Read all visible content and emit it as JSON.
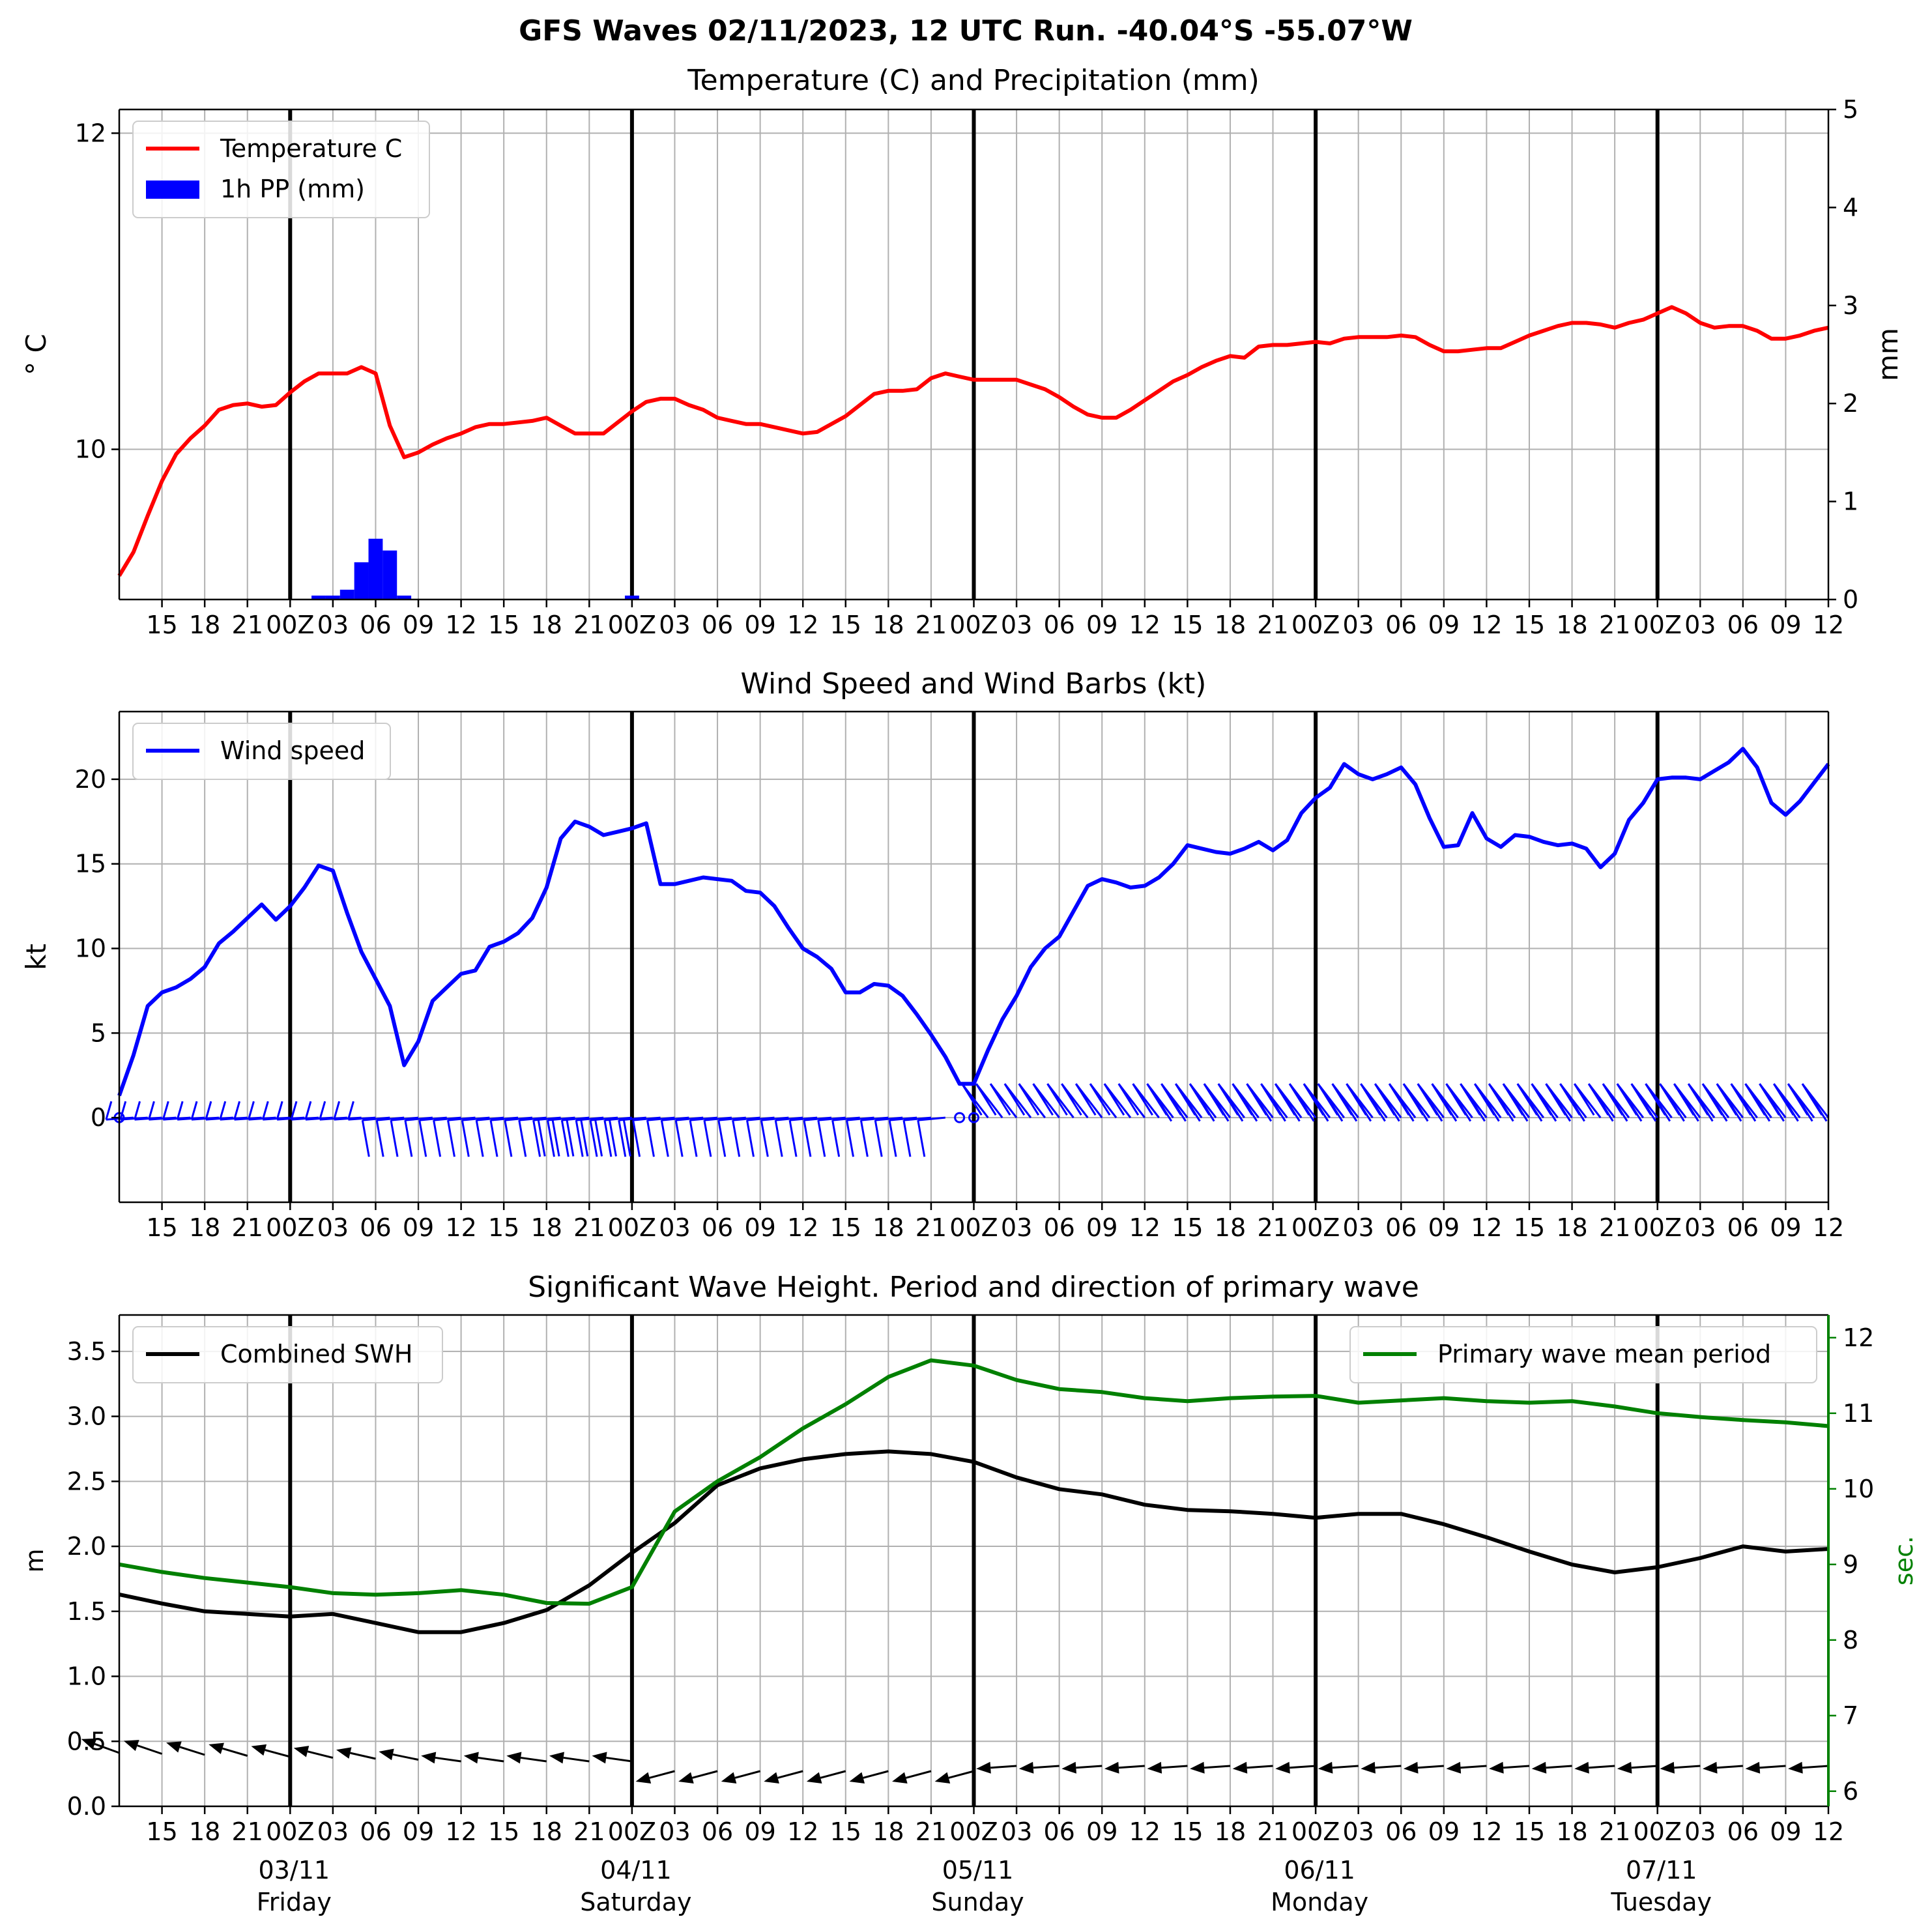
{
  "page_title": "GFS Waves 02/11/2023, 12 UTC Run. -40.04°S -55.07°W",
  "colors": {
    "temperature": "#ff0000",
    "precipitation": "#0000ff",
    "wind": "#0000ff",
    "swh": "#000000",
    "period": "#008000",
    "grid": "#b0b0b0"
  },
  "time_axis": {
    "hours_from": 12,
    "hours_to": 132,
    "hour_tick_labels": [
      "15",
      "18",
      "21",
      "00Z",
      "03",
      "06",
      "09",
      "12",
      "15",
      "18",
      "21",
      "00Z",
      "03",
      "06",
      "09",
      "12",
      "15",
      "18",
      "21",
      "00Z",
      "03",
      "06",
      "09",
      "12",
      "15",
      "18",
      "21",
      "00Z",
      "03",
      "06",
      "09",
      "12",
      "15",
      "18",
      "21",
      "00Z",
      "03",
      "06",
      "09",
      "12"
    ],
    "day_labels": [
      {
        "date": "03/11",
        "weekday": "Friday"
      },
      {
        "date": "04/11",
        "weekday": "Saturday"
      },
      {
        "date": "05/11",
        "weekday": "Sunday"
      },
      {
        "date": "06/11",
        "weekday": "Monday"
      },
      {
        "date": "07/11",
        "weekday": "Tuesday"
      }
    ]
  },
  "chart_data": [
    {
      "type": "line",
      "title": "Temperature (C) and Precipitation (mm)",
      "ylabel": "$^\\circ$C",
      "ylabel_right": "mm",
      "ylim": [
        9.05,
        12.15
      ],
      "yticks": [
        "10",
        "12"
      ],
      "ylim_right": [
        0,
        5
      ],
      "yticks_right": [
        "0",
        "1",
        "2",
        "3",
        "4",
        "5"
      ],
      "grid": true,
      "legend": "top-left",
      "series": [
        {
          "name": "Temperature C",
          "x": [
            12,
            13,
            14,
            15,
            16,
            17,
            18,
            19,
            20,
            21,
            22,
            23,
            24,
            25,
            26,
            27,
            28,
            29,
            30,
            31,
            32,
            33,
            34,
            35,
            36,
            37,
            38,
            39,
            40,
            41,
            42,
            43,
            44,
            45,
            46,
            47,
            48,
            49,
            50,
            51,
            52,
            53,
            54,
            55,
            56,
            57,
            58,
            59,
            60,
            61,
            62,
            63,
            64,
            65,
            66,
            67,
            68,
            69,
            70,
            71,
            72,
            73,
            74,
            75,
            76,
            77,
            78,
            79,
            80,
            81,
            82,
            83,
            84,
            85,
            86,
            87,
            88,
            89,
            90,
            91,
            92,
            93,
            94,
            95,
            96,
            97,
            98,
            99,
            100,
            101,
            102,
            103,
            104,
            105,
            106,
            107,
            108,
            109,
            110,
            111,
            112,
            113,
            114,
            115,
            116,
            117,
            118,
            119,
            120,
            121,
            122,
            123,
            124,
            125,
            126,
            127,
            128,
            129,
            130,
            131,
            132
          ],
          "values": [
            9.2,
            9.35,
            9.58,
            9.8,
            9.97,
            10.07,
            10.15,
            10.25,
            10.28,
            10.29,
            10.27,
            10.28,
            10.36,
            10.43,
            10.48,
            10.48,
            10.48,
            10.52,
            10.48,
            10.15,
            9.95,
            9.98,
            10.03,
            10.07,
            10.1,
            10.14,
            10.16,
            10.16,
            10.17,
            10.18,
            10.2,
            10.15,
            10.1,
            10.1,
            10.1,
            10.17,
            10.24,
            10.3,
            10.32,
            10.32,
            10.28,
            10.25,
            10.2,
            10.18,
            10.16,
            10.16,
            10.14,
            10.12,
            10.1,
            10.11,
            10.16,
            10.21,
            10.28,
            10.35,
            10.37,
            10.37,
            10.38,
            10.45,
            10.48,
            10.46,
            10.44,
            10.44,
            10.44,
            10.44,
            10.41,
            10.38,
            10.33,
            10.27,
            10.22,
            10.2,
            10.2,
            10.25,
            10.31,
            10.37,
            10.43,
            10.47,
            10.52,
            10.56,
            10.59,
            10.58,
            10.65,
            10.66,
            10.66,
            10.67,
            10.68,
            10.67,
            10.7,
            10.71,
            10.71,
            10.71,
            10.72,
            10.71,
            10.66,
            10.62,
            10.62,
            10.63,
            10.64,
            10.64,
            10.68,
            10.72,
            10.75,
            10.78,
            10.8,
            10.8,
            10.79,
            10.77,
            10.8,
            10.82,
            10.86,
            10.9,
            10.86,
            10.8,
            10.77,
            10.78,
            10.78,
            10.75,
            10.7,
            10.7,
            10.72,
            10.75,
            10.77
          ]
        },
        {
          "name": "1h PP (mm)",
          "axis": "right",
          "x": [
            26,
            27,
            28,
            29,
            30,
            31,
            32,
            48
          ],
          "values": [
            0.04,
            0.04,
            0.1,
            0.38,
            0.62,
            0.5,
            0.04,
            0.04
          ]
        }
      ]
    },
    {
      "type": "line",
      "title": "Wind Speed and Wind Barbs (kt)",
      "ylabel": "kt",
      "ylim": [
        -5,
        24
      ],
      "yticks": [
        "0",
        "5",
        "10",
        "15",
        "20"
      ],
      "grid": true,
      "legend": "top-left",
      "series": [
        {
          "name": "Wind speed",
          "x": [
            12,
            13,
            14,
            15,
            16,
            17,
            18,
            19,
            20,
            21,
            22,
            23,
            24,
            25,
            26,
            27,
            28,
            29,
            30,
            31,
            32,
            33,
            34,
            35,
            36,
            37,
            38,
            39,
            40,
            41,
            42,
            43,
            44,
            45,
            46,
            47,
            48,
            49,
            50,
            51,
            52,
            53,
            54,
            55,
            56,
            57,
            58,
            59,
            60,
            61,
            62,
            63,
            64,
            65,
            66,
            67,
            68,
            69,
            70,
            71,
            72,
            73,
            74,
            75,
            76,
            77,
            78,
            79,
            80,
            81,
            82,
            83,
            84,
            85,
            86,
            87,
            88,
            89,
            90,
            91,
            92,
            93,
            94,
            95,
            96,
            97,
            98,
            99,
            100,
            101,
            102,
            103,
            104,
            105,
            106,
            107,
            108,
            109,
            110,
            111,
            112,
            113,
            114,
            115,
            116,
            117,
            118,
            119,
            120,
            121,
            122,
            123,
            124,
            125,
            126,
            127,
            128,
            129,
            130,
            131,
            132
          ],
          "values": [
            1.3,
            3.7,
            6.6,
            7.4,
            7.7,
            8.2,
            8.9,
            10.3,
            11,
            11.8,
            12.6,
            11.7,
            12.5,
            13.6,
            14.9,
            14.6,
            12.1,
            9.8,
            8.2,
            6.6,
            3.1,
            4.5,
            6.9,
            7.7,
            8.5,
            8.7,
            10.1,
            10.4,
            10.9,
            11.8,
            13.6,
            16.5,
            17.5,
            17.2,
            16.7,
            16.9,
            17.1,
            17.4,
            13.8,
            13.8,
            14,
            14.2,
            14.1,
            14,
            13.4,
            13.3,
            12.5,
            11.2,
            10,
            9.5,
            8.8,
            7.4,
            7.4,
            7.9,
            7.8,
            7.2,
            6.1,
            4.9,
            3.6,
            2,
            2,
            4,
            5.8,
            7.2,
            8.9,
            10,
            10.7,
            12.2,
            13.7,
            14.1,
            13.9,
            13.6,
            13.7,
            14.2,
            15,
            16.1,
            15.9,
            15.7,
            15.6,
            15.9,
            16.3,
            15.8,
            16.4,
            18,
            18.9,
            19.5,
            20.9,
            20.3,
            20,
            20.3,
            20.7,
            19.7,
            17.7,
            16,
            16.1,
            18,
            16.5,
            16,
            16.7,
            16.6,
            16.3,
            16.1,
            16.2,
            15.9,
            14.8,
            15.6,
            17.6,
            18.6,
            20,
            20.1,
            20.1,
            20,
            20.5,
            21,
            21.8,
            20.7,
            18.6,
            17.9,
            18.7,
            19.8,
            20.9
          ]
        }
      ],
      "wind_barbs": {
        "count": 121,
        "note": "wind barbs along zero line"
      }
    },
    {
      "type": "line",
      "title": "Significant Wave Height. Period and direction of primary wave",
      "ylabel": "m",
      "ylabel_right": "sec.",
      "ylim": [
        0,
        3.78
      ],
      "yticks": [
        "0.0",
        "0.5",
        "1.0",
        "1.5",
        "2.0",
        "2.5",
        "3.0",
        "3.5"
      ],
      "ylim_right": [
        5.8,
        12.3
      ],
      "yticks_right": [
        "6",
        "7",
        "8",
        "9",
        "10",
        "11",
        "12"
      ],
      "grid": true,
      "series": [
        {
          "name": "Combined SWH",
          "legend": "top-left",
          "x": [
            12,
            15,
            18,
            21,
            24,
            27,
            30,
            33,
            36,
            39,
            42,
            45,
            48,
            51,
            54,
            57,
            60,
            63,
            66,
            69,
            72,
            75,
            78,
            81,
            84,
            87,
            90,
            93,
            96,
            99,
            102,
            105,
            108,
            111,
            114,
            117,
            120,
            123,
            126,
            129,
            132
          ],
          "values": [
            1.63,
            1.56,
            1.5,
            1.48,
            1.46,
            1.48,
            1.41,
            1.34,
            1.34,
            1.41,
            1.51,
            1.7,
            1.95,
            2.18,
            2.47,
            2.6,
            2.67,
            2.71,
            2.73,
            2.71,
            2.65,
            2.53,
            2.44,
            2.4,
            2.32,
            2.28,
            2.27,
            2.25,
            2.22,
            2.25,
            2.25,
            2.17,
            2.07,
            1.96,
            1.86,
            1.8,
            1.84,
            1.91,
            2,
            1.96,
            1.98
          ]
        },
        {
          "name": "Primary wave mean period",
          "legend": "top-right",
          "axis": "right",
          "x": [
            12,
            15,
            18,
            21,
            24,
            27,
            30,
            33,
            36,
            39,
            42,
            45,
            48,
            51,
            54,
            57,
            60,
            63,
            66,
            69,
            72,
            75,
            78,
            81,
            84,
            87,
            90,
            93,
            96,
            99,
            102,
            105,
            108,
            111,
            114,
            117,
            120,
            123,
            126,
            129,
            132
          ],
          "values": [
            9.0,
            8.9,
            8.82,
            8.76,
            8.7,
            8.62,
            8.6,
            8.62,
            8.66,
            8.6,
            8.49,
            8.48,
            8.7,
            9.7,
            10.1,
            10.42,
            10.8,
            11.12,
            11.48,
            11.7,
            11.63,
            11.44,
            11.32,
            11.28,
            11.2,
            11.16,
            11.2,
            11.22,
            11.23,
            11.14,
            11.17,
            11.2,
            11.16,
            11.14,
            11.16,
            11.09,
            11.0,
            10.95,
            10.91,
            10.88,
            10.83
          ]
        }
      ],
      "direction_arrows": {
        "count": 41,
        "note": "wave direction arrows"
      }
    }
  ]
}
